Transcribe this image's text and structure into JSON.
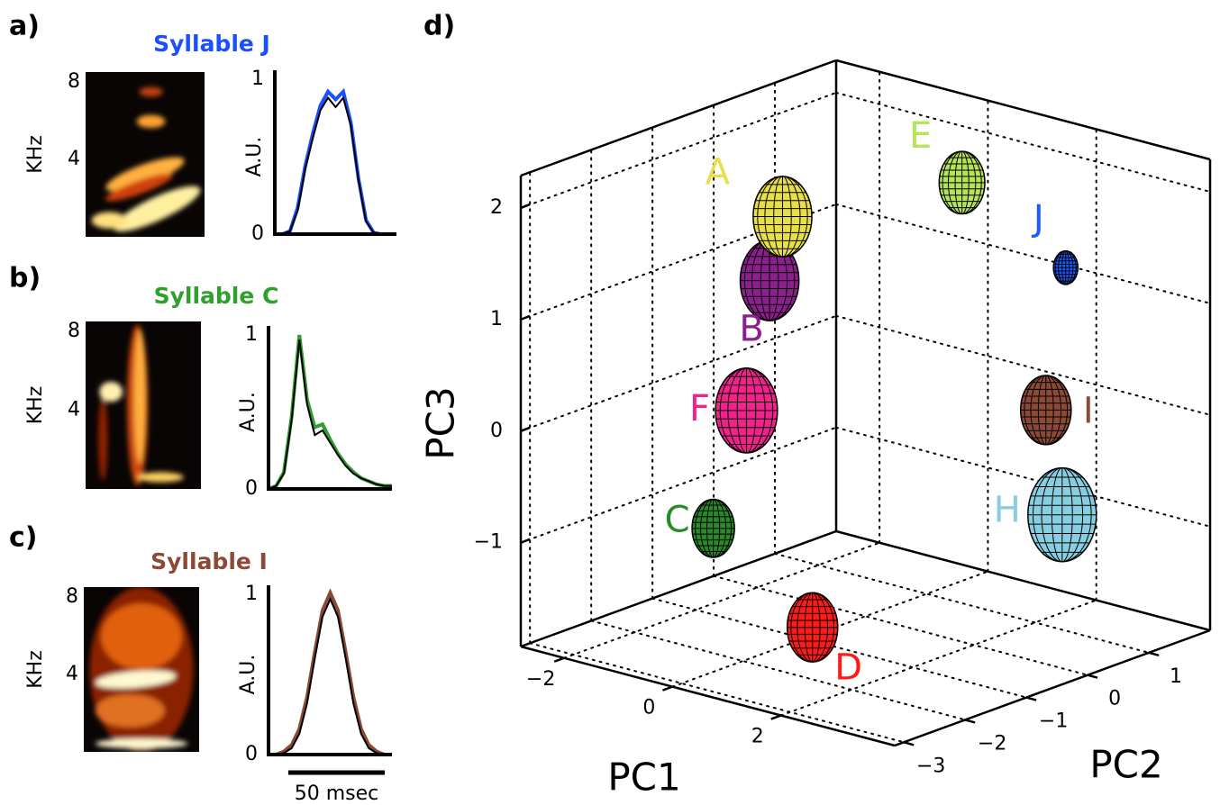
{
  "chart_data": [
    {
      "type": "spectrogram",
      "panel": "a)",
      "title": "Syllable J",
      "title_color": "#1a4fff",
      "ylabel": "KHz",
      "ylim": [
        0,
        8.5
      ],
      "yticks": [
        4,
        8
      ]
    },
    {
      "type": "line",
      "ylabel": "A.U.",
      "x": [
        0,
        4,
        8,
        12,
        16,
        20,
        24,
        28,
        32,
        36,
        40,
        44,
        48,
        52,
        56,
        60,
        64
      ],
      "values": [
        0,
        0,
        0.02,
        0.15,
        0.42,
        0.62,
        0.8,
        0.88,
        0.82,
        0.88,
        0.7,
        0.35,
        0.08,
        0.01,
        0,
        0,
        0
      ],
      "band_upper": [
        0,
        0,
        0.02,
        0.17,
        0.44,
        0.65,
        0.83,
        0.92,
        0.87,
        0.92,
        0.72,
        0.36,
        0.09,
        0.01,
        0,
        0,
        0
      ],
      "color": "#1a4fff",
      "xlim": [
        0,
        64
      ],
      "ylim": [
        0,
        1
      ],
      "yticks": [
        0,
        1
      ]
    },
    {
      "type": "spectrogram",
      "panel": "b)",
      "title": "Syllable C",
      "title_color": "#2ea02e",
      "ylabel": "KHz",
      "ylim": [
        0,
        8.5
      ],
      "yticks": [
        4,
        8
      ]
    },
    {
      "type": "line",
      "ylabel": "A.U.",
      "x": [
        0,
        4,
        8,
        12,
        16,
        20,
        24,
        28,
        32,
        36,
        40,
        44,
        48,
        52,
        56,
        60,
        64
      ],
      "values": [
        0,
        0.02,
        0.1,
        0.45,
        0.97,
        0.55,
        0.35,
        0.38,
        0.3,
        0.22,
        0.15,
        0.1,
        0.07,
        0.05,
        0.03,
        0.02,
        0.02
      ],
      "band_upper": [
        0,
        0.02,
        0.11,
        0.47,
        1.0,
        0.58,
        0.4,
        0.42,
        0.32,
        0.23,
        0.16,
        0.11,
        0.07,
        0.05,
        0.03,
        0.02,
        0.02
      ],
      "color": "#2ea02e",
      "xlim": [
        0,
        64
      ],
      "ylim": [
        0,
        1
      ],
      "yticks": [
        0,
        1
      ]
    },
    {
      "type": "spectrogram",
      "panel": "c)",
      "title": "Syllable I",
      "title_color": "#8b4a35",
      "ylabel": "KHz",
      "ylim": [
        0,
        8.5
      ],
      "yticks": [
        4,
        8
      ]
    },
    {
      "type": "line",
      "ylabel": "A.U.",
      "x": [
        0,
        4,
        8,
        12,
        16,
        20,
        24,
        28,
        32,
        36,
        40,
        44,
        48,
        52,
        56,
        60,
        64
      ],
      "values": [
        0,
        0,
        0.01,
        0.04,
        0.13,
        0.32,
        0.6,
        0.86,
        0.97,
        0.86,
        0.6,
        0.32,
        0.13,
        0.04,
        0.01,
        0,
        0
      ],
      "band_upper": [
        0,
        0,
        0.02,
        0.06,
        0.16,
        0.36,
        0.64,
        0.9,
        1.01,
        0.9,
        0.64,
        0.36,
        0.16,
        0.06,
        0.02,
        0,
        0
      ],
      "color": "#8b4a35",
      "xlim": [
        0,
        64
      ],
      "ylim": [
        0,
        1
      ],
      "yticks": [
        0,
        1
      ],
      "scale_bar": {
        "value": 50,
        "label": "50 msec"
      }
    },
    {
      "type": "scatter3d",
      "panel": "d)",
      "xlabel": "PC1",
      "ylabel": "PC2",
      "zlabel": "PC3",
      "xlim": [
        -2.8,
        4.1
      ],
      "ylim": [
        -3.15,
        2.0
      ],
      "zlim": [
        -1.93,
        2.29
      ],
      "xticks": [
        {
          "value": -2,
          "label": "−2"
        },
        0,
        2
      ],
      "yticks": [
        {
          "value": -3,
          "label": "−3"
        },
        {
          "value": -2,
          "label": "−2"
        },
        {
          "value": -1,
          "label": "−1"
        },
        0,
        1
      ],
      "zticks": [
        {
          "value": -1,
          "label": "−1"
        },
        0,
        1,
        2
      ],
      "points": [
        {
          "name": "A",
          "color": "#e8de4a",
          "x": -0.4,
          "y": -1.0,
          "z": 1.8,
          "size": 0.36
        },
        {
          "name": "B",
          "color": "#8b1f8b",
          "x": -0.3,
          "y": -1.3,
          "z": 1.3,
          "size": 0.36
        },
        {
          "name": "C",
          "color": "#2a8a2a",
          "x": -1.0,
          "y": -1.6,
          "z": -0.95,
          "size": 0.26
        },
        {
          "name": "D",
          "color": "#ff1a1a",
          "x": 1.0,
          "y": -1.75,
          "z": -1.55,
          "size": 0.31
        },
        {
          "name": "E",
          "color": "#b5e35a",
          "x": 0.2,
          "y": 1.4,
          "z": 1.7,
          "size": 0.28
        },
        {
          "name": "F",
          "color": "#f0238c",
          "x": -0.5,
          "y": -1.5,
          "z": 0.15,
          "size": 0.38
        },
        {
          "name": "H",
          "color": "#87cfe0",
          "x": 2.5,
          "y": 1.0,
          "z": -0.9,
          "size": 0.42
        },
        {
          "name": "I",
          "color": "#8b4a35",
          "x": 2.2,
          "y": 1.0,
          "z": 0.0,
          "size": 0.31
        },
        {
          "name": "J",
          "color": "#1a5cff",
          "x": 2.0,
          "y": 1.5,
          "z": 1.15,
          "size": 0.15
        }
      ]
    }
  ]
}
